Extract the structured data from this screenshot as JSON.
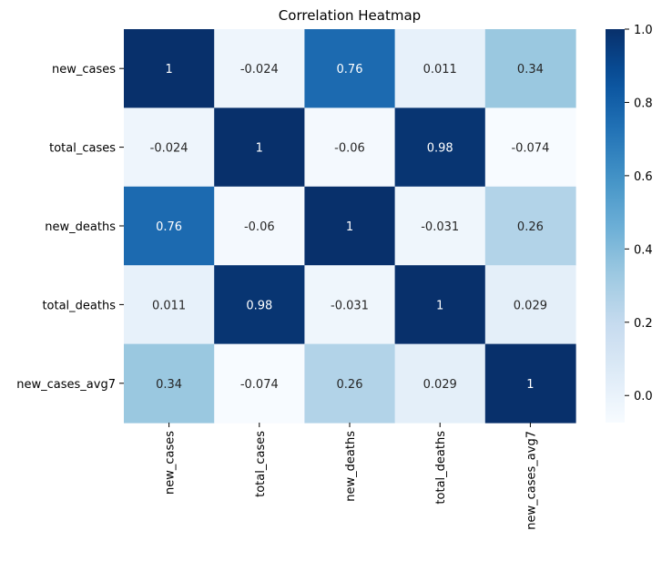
{
  "chart_data": {
    "type": "heatmap",
    "title": "Correlation Heatmap",
    "xlabel": "",
    "ylabel": "",
    "x_categories": [
      "new_cases",
      "total_cases",
      "new_deaths",
      "total_deaths",
      "new_cases_avg7"
    ],
    "y_categories": [
      "new_cases",
      "total_cases",
      "new_deaths",
      "total_deaths",
      "new_cases_avg7"
    ],
    "values": [
      [
        1,
        -0.024,
        0.76,
        0.011,
        0.34
      ],
      [
        -0.024,
        1,
        -0.06,
        0.98,
        -0.074
      ],
      [
        0.76,
        -0.06,
        1,
        -0.031,
        0.26
      ],
      [
        0.011,
        0.98,
        -0.031,
        1,
        0.029
      ],
      [
        0.34,
        -0.074,
        0.26,
        0.029,
        1
      ]
    ],
    "cell_labels": [
      [
        "1",
        "-0.024",
        "0.76",
        "0.011",
        "0.34"
      ],
      [
        "-0.024",
        "1",
        "-0.06",
        "0.98",
        "-0.074"
      ],
      [
        "0.76",
        "-0.06",
        "1",
        "-0.031",
        "0.26"
      ],
      [
        "0.011",
        "0.98",
        "-0.031",
        "1",
        "0.029"
      ],
      [
        "0.34",
        "-0.074",
        "0.26",
        "0.029",
        "1"
      ]
    ],
    "colormap": "Blues",
    "color_range": [
      -0.074,
      1
    ],
    "colorbar": {
      "ticks": [
        0.0,
        0.2,
        0.4,
        0.6,
        0.8,
        1.0
      ],
      "tick_labels": [
        "0.0",
        "0.2",
        "0.4",
        "0.6",
        "0.8",
        "1.0"
      ]
    },
    "grid": false,
    "colorbar_placement": "right"
  }
}
